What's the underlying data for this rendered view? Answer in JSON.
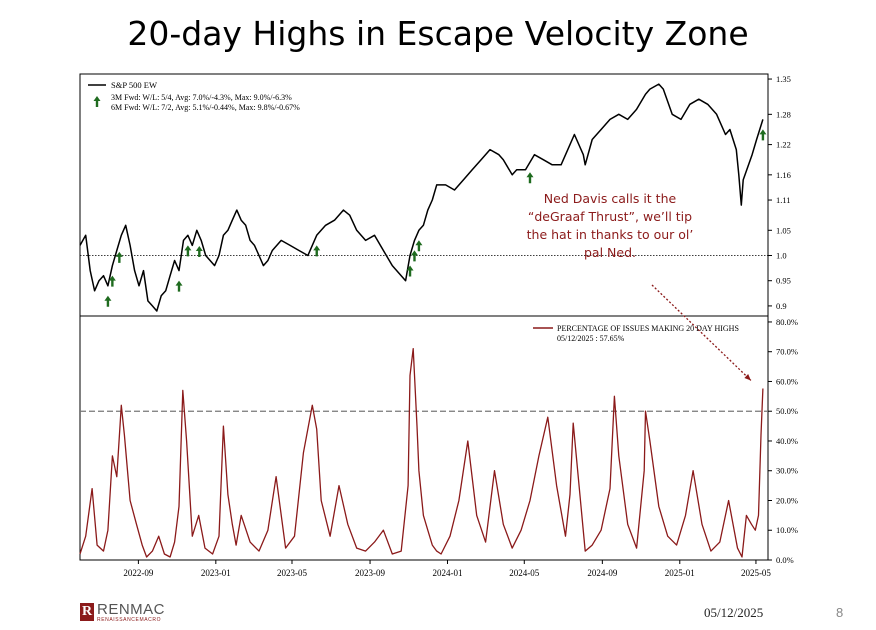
{
  "slide": {
    "title": "20-day Highs in Escape Velocity Zone",
    "callout": "Ned Davis calls it the “deGraaf Thrust”, we’ll tip the hat in thanks to our ol’ pal Ned.",
    "footer_date": "05/12/2025",
    "page_number": "8",
    "logo_name": "RENMAC",
    "logo_sub": "RENAISSANCEMACRO",
    "logo_mark": "R"
  },
  "colors": {
    "spx": "#000000",
    "pct": "#8b1a1a",
    "arrow": "#1f6b1f",
    "callout": "#8b1a1a"
  },
  "chart_data": [
    {
      "type": "line",
      "series": [
        {
          "name": "S&P 500 EW",
          "x": [
            "2022-06-01",
            "2022-06-10",
            "2022-06-17",
            "2022-06-24",
            "2022-07-01",
            "2022-07-08",
            "2022-07-15",
            "2022-07-22",
            "2022-07-29",
            "2022-08-05",
            "2022-08-12",
            "2022-08-19",
            "2022-08-26",
            "2022-09-02",
            "2022-09-09",
            "2022-09-16",
            "2022-09-23",
            "2022-09-30",
            "2022-10-07",
            "2022-10-14",
            "2022-10-21",
            "2022-10-28",
            "2022-11-04",
            "2022-11-11",
            "2022-11-18",
            "2022-11-25",
            "2022-12-02",
            "2022-12-09",
            "2022-12-16",
            "2022-12-23",
            "2022-12-30",
            "2023-01-06",
            "2023-01-13",
            "2023-01-20",
            "2023-01-27",
            "2023-02-03",
            "2023-02-10",
            "2023-02-17",
            "2023-02-24",
            "2023-03-03",
            "2023-03-10",
            "2023-03-17",
            "2023-03-24",
            "2023-03-31",
            "2023-04-14",
            "2023-04-28",
            "2023-05-12",
            "2023-05-26",
            "2023-06-09",
            "2023-06-23",
            "2023-07-07",
            "2023-07-21",
            "2023-07-31",
            "2023-08-11",
            "2023-08-25",
            "2023-09-08",
            "2023-09-22",
            "2023-10-06",
            "2023-10-20",
            "2023-10-27",
            "2023-11-03",
            "2023-11-10",
            "2023-11-17",
            "2023-11-24",
            "2023-12-01",
            "2023-12-08",
            "2023-12-15",
            "2023-12-29",
            "2024-01-12",
            "2024-01-26",
            "2024-02-09",
            "2024-02-23",
            "2024-03-08",
            "2024-03-22",
            "2024-03-29",
            "2024-04-12",
            "2024-04-19",
            "2024-05-03",
            "2024-05-17",
            "2024-05-31",
            "2024-06-14",
            "2024-06-28",
            "2024-07-12",
            "2024-07-19",
            "2024-08-02",
            "2024-08-05",
            "2024-08-16",
            "2024-08-30",
            "2024-09-13",
            "2024-09-27",
            "2024-10-11",
            "2024-10-25",
            "2024-11-08",
            "2024-11-15",
            "2024-11-29",
            "2024-12-06",
            "2024-12-20",
            "2025-01-03",
            "2025-01-17",
            "2025-01-31",
            "2025-02-14",
            "2025-02-28",
            "2025-03-14",
            "2025-03-21",
            "2025-03-31",
            "2025-04-04",
            "2025-04-08",
            "2025-04-11",
            "2025-04-25",
            "2025-05-02",
            "2025-05-12"
          ],
          "y": [
            1.02,
            1.04,
            0.97,
            0.93,
            0.95,
            0.96,
            0.94,
            0.98,
            1.01,
            1.04,
            1.06,
            1.02,
            0.97,
            0.94,
            0.97,
            0.91,
            0.9,
            0.89,
            0.92,
            0.93,
            0.96,
            0.99,
            0.97,
            1.03,
            1.04,
            1.02,
            1.05,
            1.03,
            1.0,
            0.99,
            0.98,
            1.0,
            1.04,
            1.05,
            1.07,
            1.09,
            1.07,
            1.06,
            1.03,
            1.02,
            1.0,
            0.98,
            0.99,
            1.01,
            1.03,
            1.02,
            1.01,
            1.0,
            1.04,
            1.06,
            1.07,
            1.09,
            1.08,
            1.05,
            1.03,
            1.04,
            1.01,
            0.98,
            0.96,
            0.95,
            1.0,
            1.03,
            1.05,
            1.06,
            1.09,
            1.11,
            1.14,
            1.14,
            1.13,
            1.15,
            1.17,
            1.19,
            1.21,
            1.2,
            1.19,
            1.16,
            1.17,
            1.17,
            1.2,
            1.19,
            1.18,
            1.18,
            1.22,
            1.24,
            1.2,
            1.18,
            1.23,
            1.25,
            1.27,
            1.28,
            1.27,
            1.29,
            1.32,
            1.33,
            1.34,
            1.33,
            1.28,
            1.27,
            1.3,
            1.31,
            1.3,
            1.28,
            1.24,
            1.25,
            1.21,
            1.16,
            1.1,
            1.15,
            1.2,
            1.23,
            1.27
          ]
        }
      ],
      "annotations": [
        "3M Fwd: W/L: 5/4, Avg: 7.0%/-4.3%, Max: 9.0%/-6.3%",
        "6M Fwd: W/L: 7/2, Avg: 5.1%/-0.44%, Max: 9.8%/-0.67%"
      ],
      "signal_dates": [
        "2022-07-15",
        "2022-07-22",
        "2022-08-02",
        "2022-11-04",
        "2022-11-18",
        "2022-12-06",
        "2023-06-09",
        "2023-11-03",
        "2023-11-10",
        "2023-11-17",
        "2024-05-10",
        "2025-05-12"
      ],
      "y_ticks": [
        0.9,
        0.95,
        1.0,
        1.05,
        1.11,
        1.16,
        1.22,
        1.28,
        1.35
      ],
      "y_tick_labels": [
        "0.9",
        "0.95",
        "1.0",
        "1.05",
        "1.11",
        "1.16",
        "1.22",
        "1.28",
        "1.35"
      ],
      "ylim": [
        0.88,
        1.36
      ],
      "reference_line": 1.0,
      "legend": "top-left",
      "grid": false
    },
    {
      "type": "line",
      "series": [
        {
          "name": "PERCENTAGE OF ISSUES MAKING 20 DAY HIGHS",
          "subtitle": "05/12/2025 : 57.65%",
          "x": [
            "2022-06-01",
            "2022-06-10",
            "2022-06-20",
            "2022-06-28",
            "2022-07-08",
            "2022-07-15",
            "2022-07-22",
            "2022-07-29",
            "2022-08-05",
            "2022-08-10",
            "2022-08-19",
            "2022-08-29",
            "2022-09-07",
            "2022-09-14",
            "2022-09-23",
            "2022-10-03",
            "2022-10-12",
            "2022-10-21",
            "2022-10-28",
            "2022-11-04",
            "2022-11-10",
            "2022-11-16",
            "2022-11-25",
            "2022-12-05",
            "2022-12-15",
            "2022-12-27",
            "2023-01-06",
            "2023-01-13",
            "2023-01-20",
            "2023-01-27",
            "2023-02-02",
            "2023-02-10",
            "2023-02-24",
            "2023-03-10",
            "2023-03-24",
            "2023-04-06",
            "2023-04-21",
            "2023-05-05",
            "2023-05-19",
            "2023-06-02",
            "2023-06-09",
            "2023-06-16",
            "2023-06-30",
            "2023-07-14",
            "2023-07-28",
            "2023-08-11",
            "2023-08-25",
            "2023-09-08",
            "2023-09-22",
            "2023-10-06",
            "2023-10-20",
            "2023-10-31",
            "2023-11-03",
            "2023-11-08",
            "2023-11-14",
            "2023-11-17",
            "2023-11-24",
            "2023-12-01",
            "2023-12-08",
            "2023-12-15",
            "2023-12-22",
            "2024-01-05",
            "2024-01-19",
            "2024-02-02",
            "2024-02-16",
            "2024-03-01",
            "2024-03-15",
            "2024-03-29",
            "2024-04-12",
            "2024-04-26",
            "2024-05-10",
            "2024-05-24",
            "2024-06-07",
            "2024-06-21",
            "2024-07-05",
            "2024-07-12",
            "2024-07-17",
            "2024-08-05",
            "2024-08-16",
            "2024-08-30",
            "2024-09-13",
            "2024-09-20",
            "2024-09-27",
            "2024-10-11",
            "2024-10-25",
            "2024-11-06",
            "2024-11-08",
            "2024-11-15",
            "2024-11-29",
            "2024-12-13",
            "2024-12-27",
            "2025-01-10",
            "2025-01-22",
            "2025-02-05",
            "2025-02-19",
            "2025-03-05",
            "2025-03-19",
            "2025-04-02",
            "2025-04-09",
            "2025-04-16",
            "2025-04-24",
            "2025-04-30",
            "2025-05-05",
            "2025-05-09",
            "2025-05-12"
          ],
          "y": [
            2,
            8,
            24,
            5,
            3,
            10,
            35,
            28,
            52,
            42,
            20,
            12,
            5,
            1,
            3,
            8,
            2,
            1,
            6,
            18,
            57,
            40,
            8,
            15,
            4,
            2,
            8,
            45,
            22,
            12,
            5,
            15,
            6,
            3,
            10,
            28,
            4,
            8,
            36,
            52,
            44,
            20,
            8,
            25,
            12,
            4,
            3,
            6,
            10,
            2,
            3,
            25,
            62,
            71,
            45,
            30,
            15,
            10,
            5,
            3,
            2,
            8,
            20,
            40,
            15,
            6,
            30,
            12,
            4,
            10,
            20,
            35,
            48,
            25,
            8,
            22,
            46,
            3,
            5,
            10,
            24,
            55,
            35,
            12,
            4,
            30,
            50,
            40,
            18,
            8,
            5,
            15,
            30,
            12,
            3,
            6,
            20,
            4,
            1,
            15,
            12,
            10,
            15,
            42,
            57.65
          ]
        }
      ],
      "y_ticks": [
        0,
        10,
        20,
        30,
        40,
        50,
        60,
        70,
        80
      ],
      "y_tick_labels": [
        "0.0%",
        "10.0%",
        "20.0%",
        "30.0%",
        "40.0%",
        "50.0%",
        "60.0%",
        "70.0%",
        "80.0%"
      ],
      "ylim": [
        0,
        82
      ],
      "reference_line": 50,
      "x_ticks": [
        "2022-09-01",
        "2023-01-01",
        "2023-05-01",
        "2023-09-01",
        "2024-01-01",
        "2024-05-01",
        "2024-09-01",
        "2025-01-01",
        "2025-05-01"
      ],
      "x_tick_labels": [
        "2022-09",
        "2023-01",
        "2023-05",
        "2023-09",
        "2024-01",
        "2024-05",
        "2024-09",
        "2025-01",
        "2025-05"
      ],
      "xlim": [
        "2022-06-01",
        "2025-05-20"
      ],
      "legend": "top-right",
      "grid": false
    }
  ]
}
